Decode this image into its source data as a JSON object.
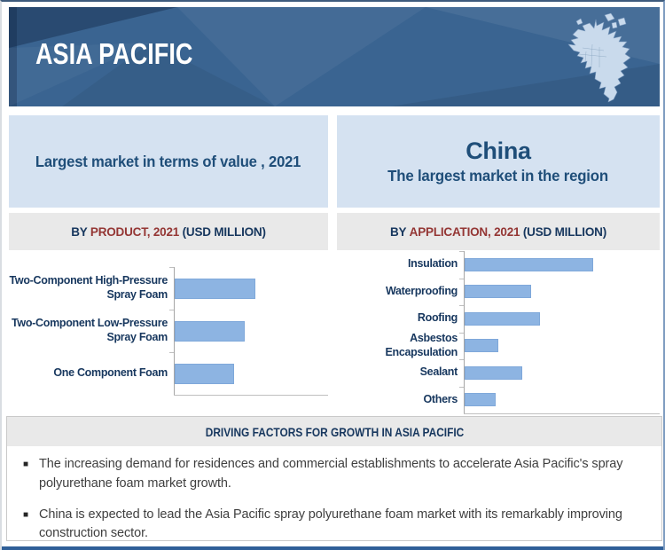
{
  "header": {
    "title": "ASIA PACIFIC",
    "map_icon": "north-america-map-icon"
  },
  "panels": {
    "left_highlight": "Largest market in terms of value , 2021",
    "right_highlight_title": "China",
    "right_highlight_subtitle": "The largest market in the region"
  },
  "chart_data": [
    {
      "type": "bar",
      "orientation": "horizontal",
      "title": "BY PRODUCT, 2021 (USD MILLION)",
      "title_parts": {
        "prefix": "BY ",
        "emphasis": "PRODUCT, 2021",
        "suffix": " (USD MILLION)"
      },
      "categories": [
        "Two-Component High-Pressure Spray Foam",
        "Two-Component Low-Pressure Spray Foam",
        "One Component Foam"
      ],
      "values": [
        91,
        79,
        67
      ],
      "value_note": "axis unlabeled; values are relative bar lengths read from pixels",
      "xlabel": "",
      "ylabel": "",
      "bar_color": "#8db4e2",
      "grid": false,
      "legend": false
    },
    {
      "type": "bar",
      "orientation": "horizontal",
      "title": "BY APPLICATION, 2021 (USD MILLION)",
      "title_parts": {
        "prefix": "BY ",
        "emphasis": "APPLICATION, 2021",
        "suffix": " (USD MILLION)"
      },
      "categories": [
        "Insulation",
        "Waterproofing",
        "Roofing",
        "Asbestos Encapsulation",
        "Sealant",
        "Others"
      ],
      "values": [
        145,
        75,
        85,
        38,
        65,
        35
      ],
      "value_note": "axis unlabeled; values are relative bar lengths read from pixels",
      "xlabel": "",
      "ylabel": "",
      "bar_color": "#8db4e2",
      "grid": false,
      "legend": false
    }
  ],
  "driving_factors": {
    "title": "DRIVING FACTORS FOR GROWTH IN ASIA PACIFIC",
    "bullets": [
      "The increasing demand for residences and commercial establishments to accelerate Asia Pacific's spray polyurethane foam market growth.",
      "China is expected to lead the Asia Pacific spray polyurethane foam market with its remarkably improving construction sector."
    ]
  },
  "colors": {
    "header_bg": "#3a6491",
    "header_text": "#ffffff",
    "panel_bg": "#d5e2f1",
    "panel_text": "#1f4e79",
    "band_bg": "#e9e9e9",
    "band_navy": "#17375e",
    "band_maroon": "#943634",
    "bar_fill": "#8db4e2",
    "bullet_text": "#3f3f3f",
    "bottom_rule": "#2f5f98",
    "map_fill": "#c9daec"
  }
}
